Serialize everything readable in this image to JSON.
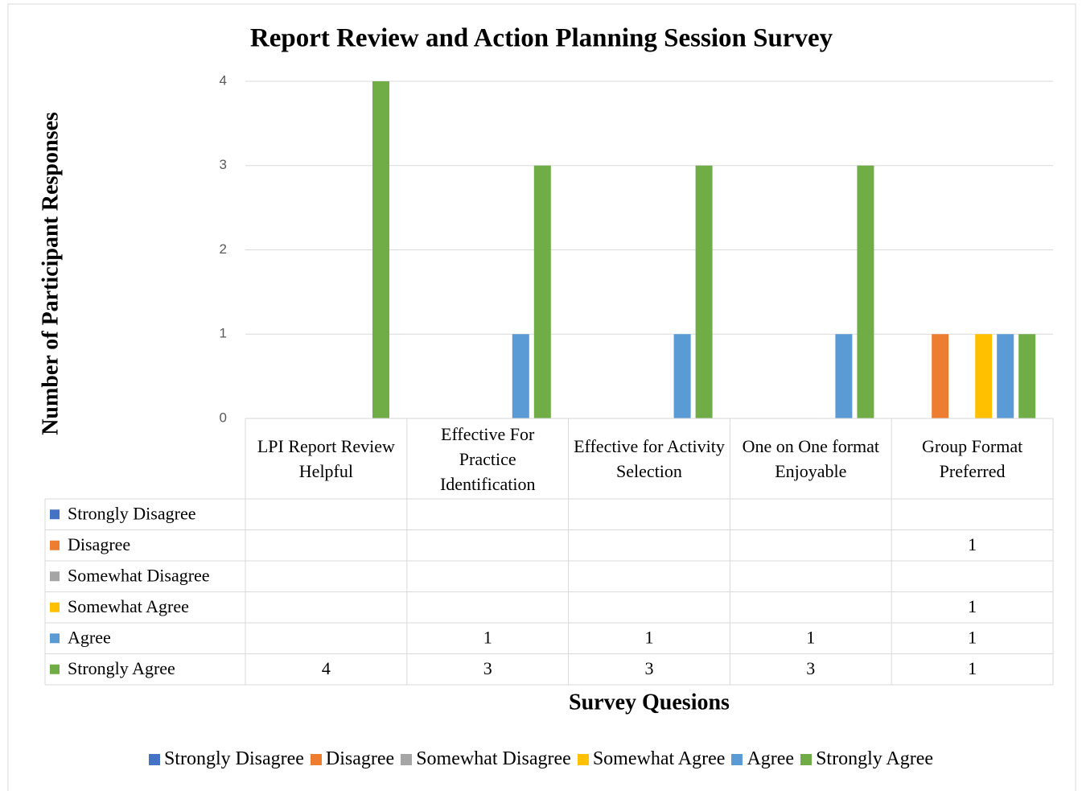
{
  "chart_data": {
    "type": "bar",
    "title": "Report Review and Action Planning Session Survey",
    "x_label": "Survey Quesions",
    "y_label": "Number of Participant Responses",
    "categories": [
      "LPI Report Review Helpful",
      "Effective For Practice Identification",
      "Effective for Activity Selection",
      "One on One format Enjoyable",
      "Group Format Preferred"
    ],
    "series": [
      {
        "name": "Strongly Disagree",
        "color": "#4472c4",
        "values": [
          null,
          null,
          null,
          null,
          null
        ]
      },
      {
        "name": "Disagree",
        "color": "#ed7d31",
        "values": [
          null,
          null,
          null,
          null,
          1
        ]
      },
      {
        "name": "Somewhat Disagree",
        "color": "#a5a5a5",
        "values": [
          null,
          null,
          null,
          null,
          null
        ]
      },
      {
        "name": "Somewhat Agree",
        "color": "#ffc000",
        "values": [
          null,
          null,
          null,
          null,
          1
        ]
      },
      {
        "name": "Agree",
        "color": "#5b9bd5",
        "values": [
          null,
          1,
          1,
          1,
          1
        ]
      },
      {
        "name": "Strongly Agree",
        "color": "#70ad47",
        "values": [
          4,
          3,
          3,
          3,
          1
        ]
      }
    ],
    "ylim": [
      0,
      4
    ],
    "yticks": [
      0,
      1,
      2,
      3,
      4
    ],
    "grid": true,
    "legend": "bottom"
  }
}
